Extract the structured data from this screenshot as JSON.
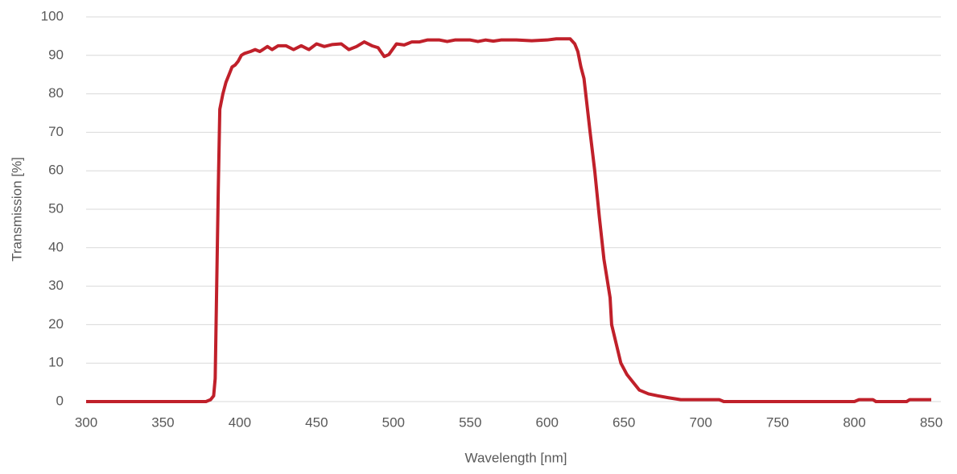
{
  "chart_data": {
    "type": "line",
    "x_label": "Wavelength [nm]",
    "y_label": "Transmission [%]",
    "xlim": [
      300,
      850
    ],
    "ylim": [
      0,
      100
    ],
    "xticks": [
      300,
      350,
      400,
      450,
      500,
      550,
      600,
      650,
      700,
      750,
      800,
      850
    ],
    "yticks": [
      0,
      10,
      20,
      30,
      40,
      50,
      60,
      70,
      80,
      90,
      100
    ],
    "grid": true,
    "series": [
      {
        "name": "Transmission",
        "color": "#c0202a",
        "x": [
          300,
          340,
          378,
          381,
          383,
          384,
          386,
          387,
          389,
          391,
          393,
          395,
          397,
          399,
          401,
          403,
          407,
          410,
          413,
          415,
          418,
          421,
          425,
          430,
          435,
          440,
          445,
          450,
          455,
          460,
          466,
          471,
          476,
          481,
          486,
          490,
          494,
          497,
          502,
          507,
          512,
          517,
          522,
          530,
          535,
          540,
          550,
          555,
          560,
          565,
          570,
          580,
          590,
          600,
          606,
          610,
          615,
          618,
          620,
          622,
          624,
          628,
          631,
          634,
          637,
          641,
          642,
          645,
          648,
          652,
          656,
          660,
          666,
          672,
          679,
          687,
          700,
          712,
          715,
          760,
          800,
          803,
          812,
          814,
          834,
          836,
          850
        ],
        "values": [
          0,
          0,
          0,
          0.5,
          1.5,
          6,
          55,
          76,
          80,
          83,
          85,
          87,
          87.5,
          88.5,
          90,
          90.5,
          91,
          91.5,
          91,
          91.5,
          92.3,
          91.5,
          92.5,
          92.5,
          91.5,
          92.5,
          91.5,
          93,
          92.3,
          92.8,
          93,
          91.5,
          92.3,
          93.5,
          92.5,
          92,
          89.7,
          90.2,
          93,
          92.7,
          93.5,
          93.5,
          94,
          94,
          93.6,
          94,
          94,
          93.6,
          94,
          93.7,
          94,
          94,
          93.8,
          94,
          94.3,
          94.3,
          94.3,
          93,
          91,
          87,
          84,
          70,
          60,
          48,
          37,
          27,
          20,
          15,
          10,
          7,
          5,
          3,
          2,
          1.5,
          1,
          0.5,
          0.5,
          0.5,
          0,
          0,
          0,
          0.5,
          0.5,
          0,
          0,
          0.5,
          0.5
        ]
      }
    ]
  }
}
